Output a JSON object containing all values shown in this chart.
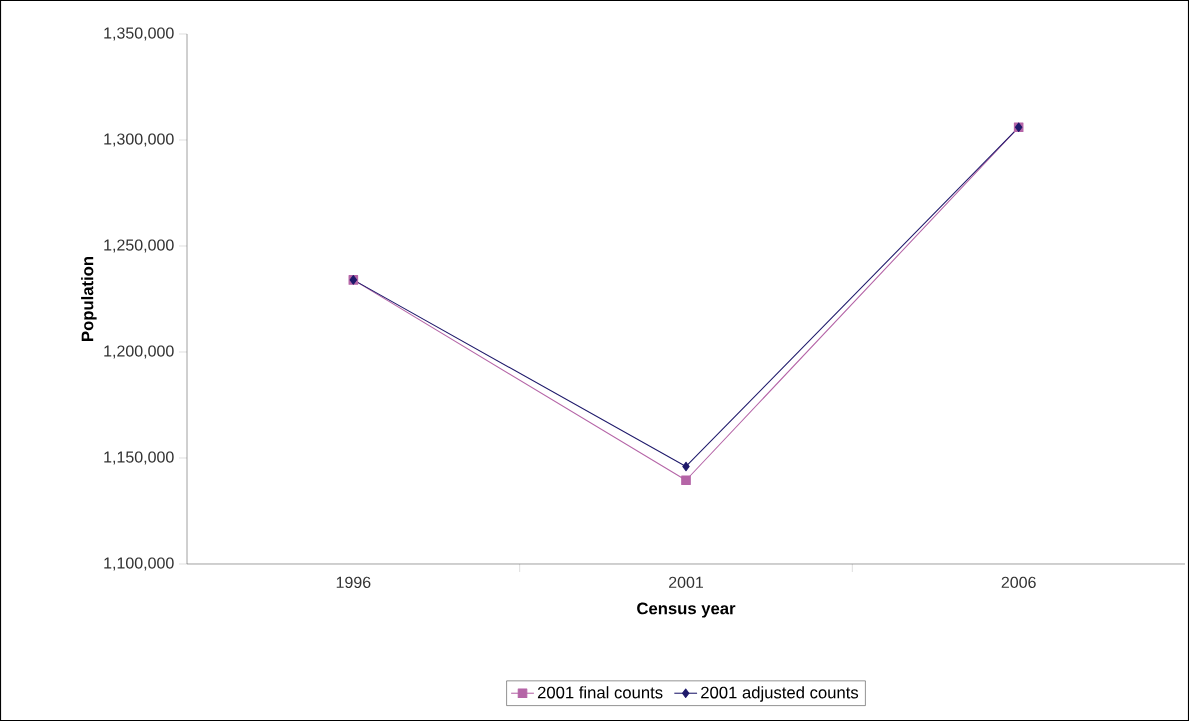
{
  "chart_data": {
    "type": "line",
    "xlabel": "Census year",
    "ylabel": "Population",
    "categories": [
      "1996",
      "2001",
      "2006"
    ],
    "series": [
      {
        "name": "2001 final counts",
        "color": "#b565a7",
        "marker": "square",
        "values": [
          1234000,
          1139500,
          1306000
        ]
      },
      {
        "name": "2001 adjusted counts",
        "color": "#1f1a6b",
        "marker": "diamond",
        "values": [
          1234000,
          1146000,
          1306000
        ]
      }
    ],
    "ylim": [
      1100000,
      1350000
    ],
    "yticks": [
      {
        "value": 1100000,
        "label": "1,100,000"
      },
      {
        "value": 1150000,
        "label": "1,150,000"
      },
      {
        "value": 1200000,
        "label": "1,200,000"
      },
      {
        "value": 1250000,
        "label": "1,250,000"
      },
      {
        "value": 1300000,
        "label": "1,300,000"
      },
      {
        "value": 1350000,
        "label": "1,350,000"
      }
    ],
    "grid": false,
    "legend": "bottom",
    "line_style": "solid"
  }
}
